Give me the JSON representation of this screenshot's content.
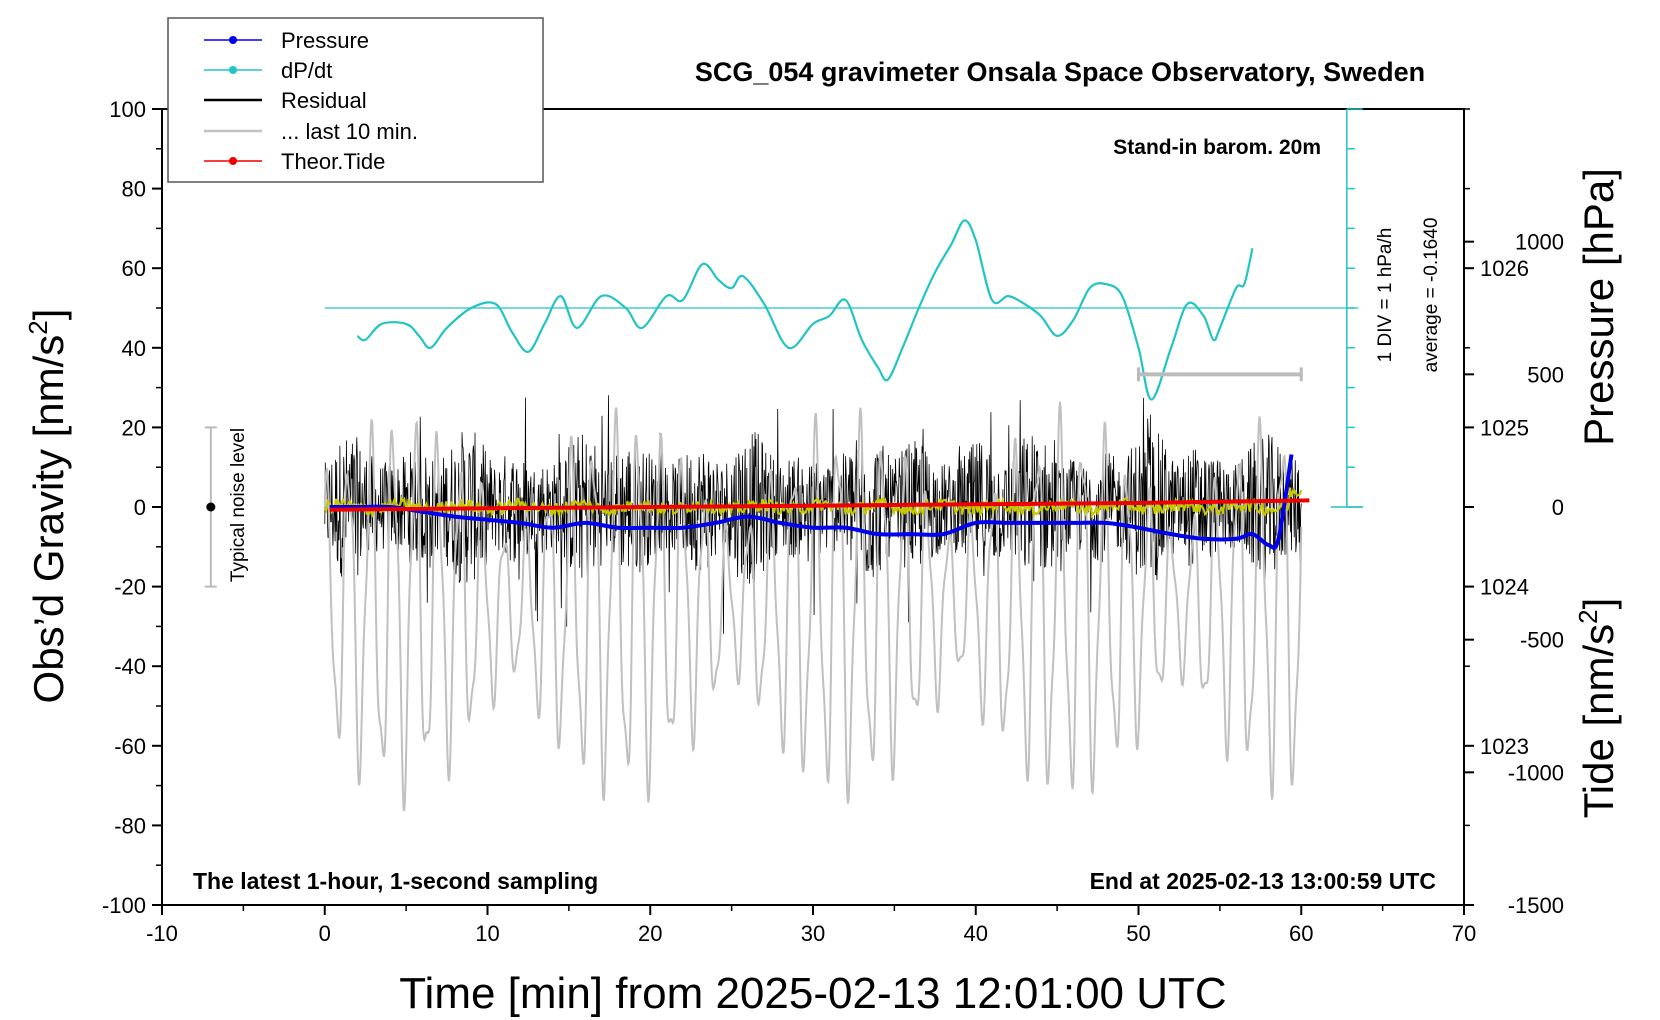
{
  "chart_data": {
    "type": "line",
    "title": "SCG_054 gravimeter Onsala Space Observatory, Sweden",
    "xlabel": "Time [min] from 2025-02-13 12:01:00 UTC",
    "ylabel_left": "Obs’d Gravity [nm/s",
    "ylabel_left_sup": "2",
    "ylabel_left_close": "]",
    "ylabel_right_top": "Pressure [hPa]",
    "ylabel_right_bottom": "Tide [nm/s",
    "ylabel_right_bottom_sup": "2",
    "ylabel_right_bottom_close": "]",
    "xlim": [
      -10,
      70
    ],
    "ylim": [
      -100,
      100
    ],
    "x_ticks": [
      "-10",
      "0",
      "10",
      "20",
      "30",
      "40",
      "50",
      "60",
      "70"
    ],
    "y_ticks": [
      "-100",
      "-80",
      "-60",
      "-40",
      "-20",
      "0",
      "20",
      "40",
      "60",
      "80",
      "100"
    ],
    "pressure_axis": {
      "ticks": [
        "1023",
        "1024",
        "1025",
        "1026"
      ],
      "range": [
        1022.0,
        1027.0
      ]
    },
    "tide_axis": {
      "ticks": [
        "-1500",
        "-1000",
        "-500",
        "0",
        "500",
        "1000"
      ],
      "range": [
        -1500,
        1500
      ]
    },
    "legend": [
      {
        "name": "Pressure",
        "color": "#0000ee",
        "marker": true
      },
      {
        "name": "dP/dt",
        "color": "#22c4c4",
        "marker": true
      },
      {
        "name": "Residual",
        "color": "#000000",
        "marker": false
      },
      {
        "name": "... last 10 min.",
        "color": "#c0c0c0",
        "marker": false
      },
      {
        "name": "Theor.Tide",
        "color": "#ee0000",
        "marker": true
      }
    ],
    "annotations": {
      "stand_in": "Stand-in barom. 20m",
      "div": "1 DIV = 1 hPa/h",
      "average": "average = -0.1640",
      "noise": "Typical noise level",
      "latest": "The latest 1-hour, 1-second sampling",
      "end": "End at 2025-02-13 13:00:59 UTC"
    },
    "series": [
      {
        "name": "Pressure",
        "axis": "pressure_hPa",
        "color": "#0000ee",
        "x": [
          0.3,
          2,
          4,
          6,
          8,
          10,
          12,
          14,
          16,
          18,
          20,
          22,
          24,
          26,
          28,
          30,
          32,
          34,
          36,
          38,
          40,
          42,
          44,
          46,
          48,
          50,
          52,
          54,
          56,
          57,
          58,
          58.6,
          59.4
        ],
        "y": [
          1024.5,
          1024.5,
          1024.5,
          1024.47,
          1024.44,
          1024.42,
          1024.4,
          1024.37,
          1024.4,
          1024.37,
          1024.37,
          1024.37,
          1024.4,
          1024.44,
          1024.4,
          1024.37,
          1024.37,
          1024.33,
          1024.33,
          1024.33,
          1024.4,
          1024.4,
          1024.4,
          1024.4,
          1024.4,
          1024.37,
          1024.33,
          1024.3,
          1024.3,
          1024.33,
          1024.26,
          1024.3,
          1024.83
        ]
      },
      {
        "name": "dP/dt",
        "axis": "gravity_nm_s2",
        "color": "#22c4c4",
        "x": [
          2,
          2.5,
          3.5,
          5,
          5.8,
          6.5,
          7.5,
          9,
          10.5,
          11.5,
          12.5,
          13.5,
          14.5,
          15.5,
          17,
          18.5,
          19.5,
          21,
          22,
          23.2,
          24.2,
          25,
          25.7,
          27,
          28.5,
          30,
          31,
          32,
          33,
          34,
          34.6,
          35.5,
          36.5,
          37.5,
          38.5,
          39.3,
          40,
          41,
          42,
          43,
          44,
          45,
          46,
          47,
          48,
          49,
          50,
          50.8,
          52,
          53,
          54,
          54.6,
          55,
          56,
          56.5,
          57
        ],
        "y": [
          43,
          42,
          46,
          46,
          43,
          40,
          45,
          50,
          51,
          44,
          39,
          46,
          53,
          45,
          53,
          50,
          45,
          53,
          52,
          61,
          57,
          55,
          58,
          51,
          40,
          46,
          48,
          52,
          42,
          35,
          32,
          40,
          50,
          59,
          66,
          72,
          67,
          52,
          53,
          51,
          48,
          43,
          47,
          55,
          56,
          53,
          40,
          27,
          40,
          51,
          48,
          42,
          45,
          55,
          56,
          65
        ]
      },
      {
        "name": "Theor.Tide",
        "axis": "tide_nm_s2",
        "color": "#ee0000",
        "x": [
          0.3,
          10,
          20,
          30,
          40,
          50,
          60.5
        ],
        "y": [
          -10,
          -5,
          0,
          5,
          10,
          15,
          25
        ]
      }
    ],
    "residual_envelope": {
      "x_range": [
        0,
        60
      ],
      "typical_amplitude": 20,
      "max_amplitude": 33
    },
    "last10_envelope": {
      "x_range": [
        0,
        60
      ],
      "tide_range": [
        -1150,
        400
      ]
    },
    "reference_lines": {
      "dpdt_zero": 50,
      "noise_bar": [
        -20,
        20
      ],
      "noise_x": -7,
      "scale_bar_x": [
        50,
        60
      ],
      "scale_bar_y_tide": 500
    }
  }
}
